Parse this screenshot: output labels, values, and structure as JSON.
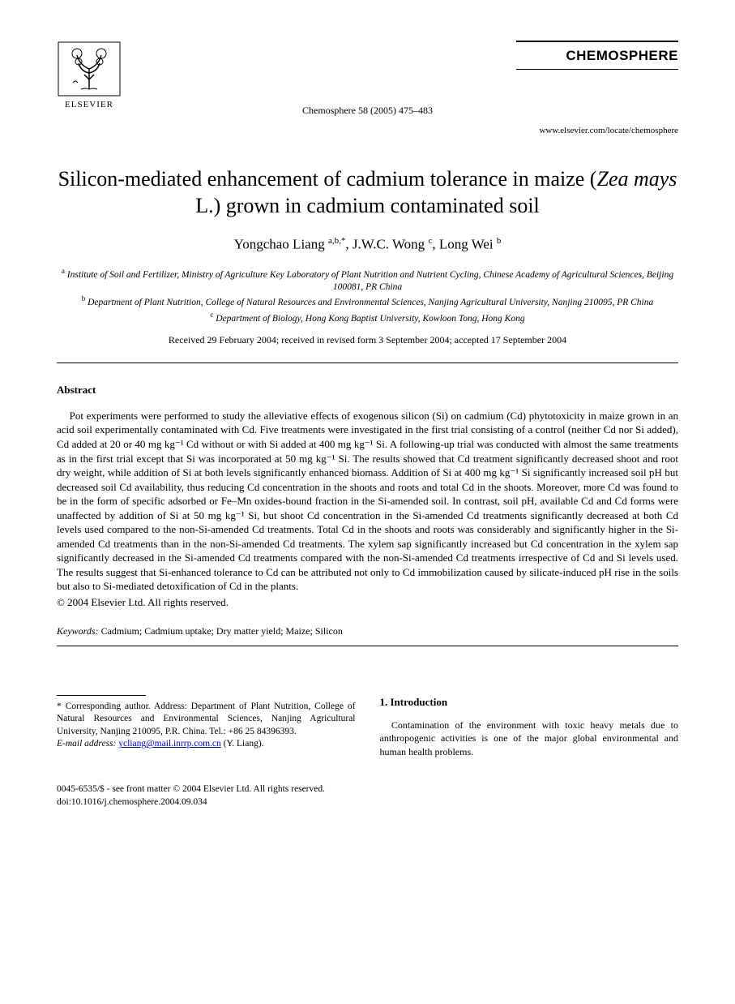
{
  "publisher": {
    "name": "ELSEVIER"
  },
  "journal": {
    "name": "CHEMOSPHERE",
    "citation": "Chemosphere 58 (2005) 475–483",
    "locate_url": "www.elsevier.com/locate/chemosphere"
  },
  "article": {
    "title_pre": "Silicon-mediated enhancement of cadmium tolerance in maize (",
    "title_italic": "Zea mays",
    "title_post": " L.) grown in cadmium contaminated soil",
    "authors_html": "Yongchao Liang <sup>a,b,*</sup>, J.W.C. Wong <sup>c</sup>, Long Wei <sup>b</sup>",
    "affiliations": {
      "a": "Institute of Soil and Fertilizer, Ministry of Agriculture Key Laboratory of Plant Nutrition and Nutrient Cycling, Chinese Academy of Agricultural Sciences, Beijing 100081, PR China",
      "b": "Department of Plant Nutrition, College of Natural Resources and Environmental Sciences, Nanjing Agricultural University, Nanjing 210095, PR China",
      "c": "Department of Biology, Hong Kong Baptist University, Kowloon Tong, Hong Kong"
    },
    "dates": "Received 29 February 2004; received in revised form 3 September 2004; accepted 17 September 2004"
  },
  "abstract": {
    "heading": "Abstract",
    "text": "Pot experiments were performed to study the alleviative effects of exogenous silicon (Si) on cadmium (Cd) phytotoxicity in maize grown in an acid soil experimentally contaminated with Cd. Five treatments were investigated in the first trial consisting of a control (neither Cd nor Si added), Cd added at 20 or 40 mg kg⁻¹ Cd without or with Si added at 400 mg kg⁻¹ Si. A following-up trial was conducted with almost the same treatments as in the first trial except that Si was incorporated at 50 mg kg⁻¹ Si. The results showed that Cd treatment significantly decreased shoot and root dry weight, while addition of Si at both levels significantly enhanced biomass. Addition of Si at 400 mg kg⁻¹ Si significantly increased soil pH but decreased soil Cd availability, thus reducing Cd concentration in the shoots and roots and total Cd in the shoots. Moreover, more Cd was found to be in the form of specific adsorbed or Fe–Mn oxides-bound fraction in the Si-amended soil. In contrast, soil pH, available Cd and Cd forms were unaffected by addition of Si at 50 mg kg⁻¹ Si, but shoot Cd concentration in the Si-amended Cd treatments significantly decreased at both Cd levels used compared to the non-Si-amended Cd treatments. Total Cd in the shoots and roots was considerably and significantly higher in the Si-amended Cd treatments than in the non-Si-amended Cd treatments. The xylem sap significantly increased but Cd concentration in the xylem sap significantly decreased in the Si-amended Cd treatments compared with the non-Si-amended Cd treatments irrespective of Cd and Si levels used. The results suggest that Si-enhanced tolerance to Cd can be attributed not only to Cd immobilization caused by silicate-induced pH rise in the soils but also to Si-mediated detoxification of Cd in the plants.",
    "copyright": "© 2004 Elsevier Ltd. All rights reserved."
  },
  "keywords": {
    "label": "Keywords:",
    "text": " Cadmium; Cadmium uptake; Dry matter yield; Maize; Silicon"
  },
  "footnote": {
    "corresponding": "* Corresponding author. Address: Department of Plant Nutrition, College of Natural Resources and Environmental Sciences, Nanjing Agricultural University, Nanjing 210095, P.R. China. Tel.: +86 25 84396393.",
    "email_label": "E-mail address:",
    "email": "ycliang@mail.inrrp.com.cn",
    "email_suffix": " (Y. Liang)."
  },
  "introduction": {
    "heading": "1. Introduction",
    "text": "Contamination of the environment with toxic heavy metals due to anthropogenic activities is one of the major global environmental and human health problems."
  },
  "bottom": {
    "front_matter": "0045-6535/$ - see front matter © 2004 Elsevier Ltd. All rights reserved.",
    "doi": "doi:10.1016/j.chemosphere.2004.09.034"
  }
}
